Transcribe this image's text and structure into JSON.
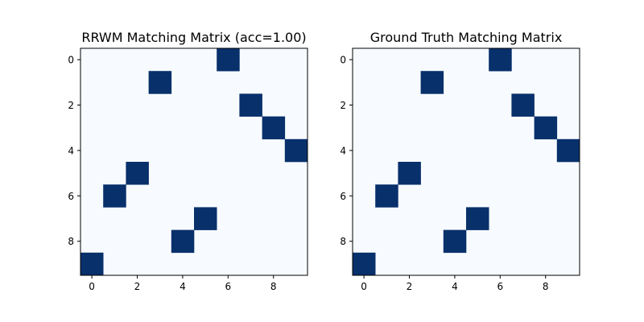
{
  "chart_data": [
    {
      "type": "heatmap",
      "title": "RRWM Matching Matrix (acc=1.00)",
      "rows": 10,
      "cols": 10,
      "xticks": [
        "0",
        "2",
        "4",
        "6",
        "8"
      ],
      "yticks": [
        "0",
        "2",
        "4",
        "6",
        "8"
      ],
      "colormap": {
        "low": "#f7fbff",
        "high": "#08306b"
      },
      "matches": [
        {
          "row": 0,
          "col": 6
        },
        {
          "row": 1,
          "col": 3
        },
        {
          "row": 2,
          "col": 7
        },
        {
          "row": 3,
          "col": 8
        },
        {
          "row": 4,
          "col": 9
        },
        {
          "row": 5,
          "col": 2
        },
        {
          "row": 6,
          "col": 1
        },
        {
          "row": 7,
          "col": 5
        },
        {
          "row": 8,
          "col": 4
        },
        {
          "row": 9,
          "col": 0
        }
      ]
    },
    {
      "type": "heatmap",
      "title": "Ground Truth Matching Matrix",
      "rows": 10,
      "cols": 10,
      "xticks": [
        "0",
        "2",
        "4",
        "6",
        "8"
      ],
      "yticks": [
        "0",
        "2",
        "4",
        "6",
        "8"
      ],
      "colormap": {
        "low": "#f7fbff",
        "high": "#08306b"
      },
      "matches": [
        {
          "row": 0,
          "col": 6
        },
        {
          "row": 1,
          "col": 3
        },
        {
          "row": 2,
          "col": 7
        },
        {
          "row": 3,
          "col": 8
        },
        {
          "row": 4,
          "col": 9
        },
        {
          "row": 5,
          "col": 2
        },
        {
          "row": 6,
          "col": 1
        },
        {
          "row": 7,
          "col": 5
        },
        {
          "row": 8,
          "col": 4
        },
        {
          "row": 9,
          "col": 0
        }
      ]
    }
  ]
}
